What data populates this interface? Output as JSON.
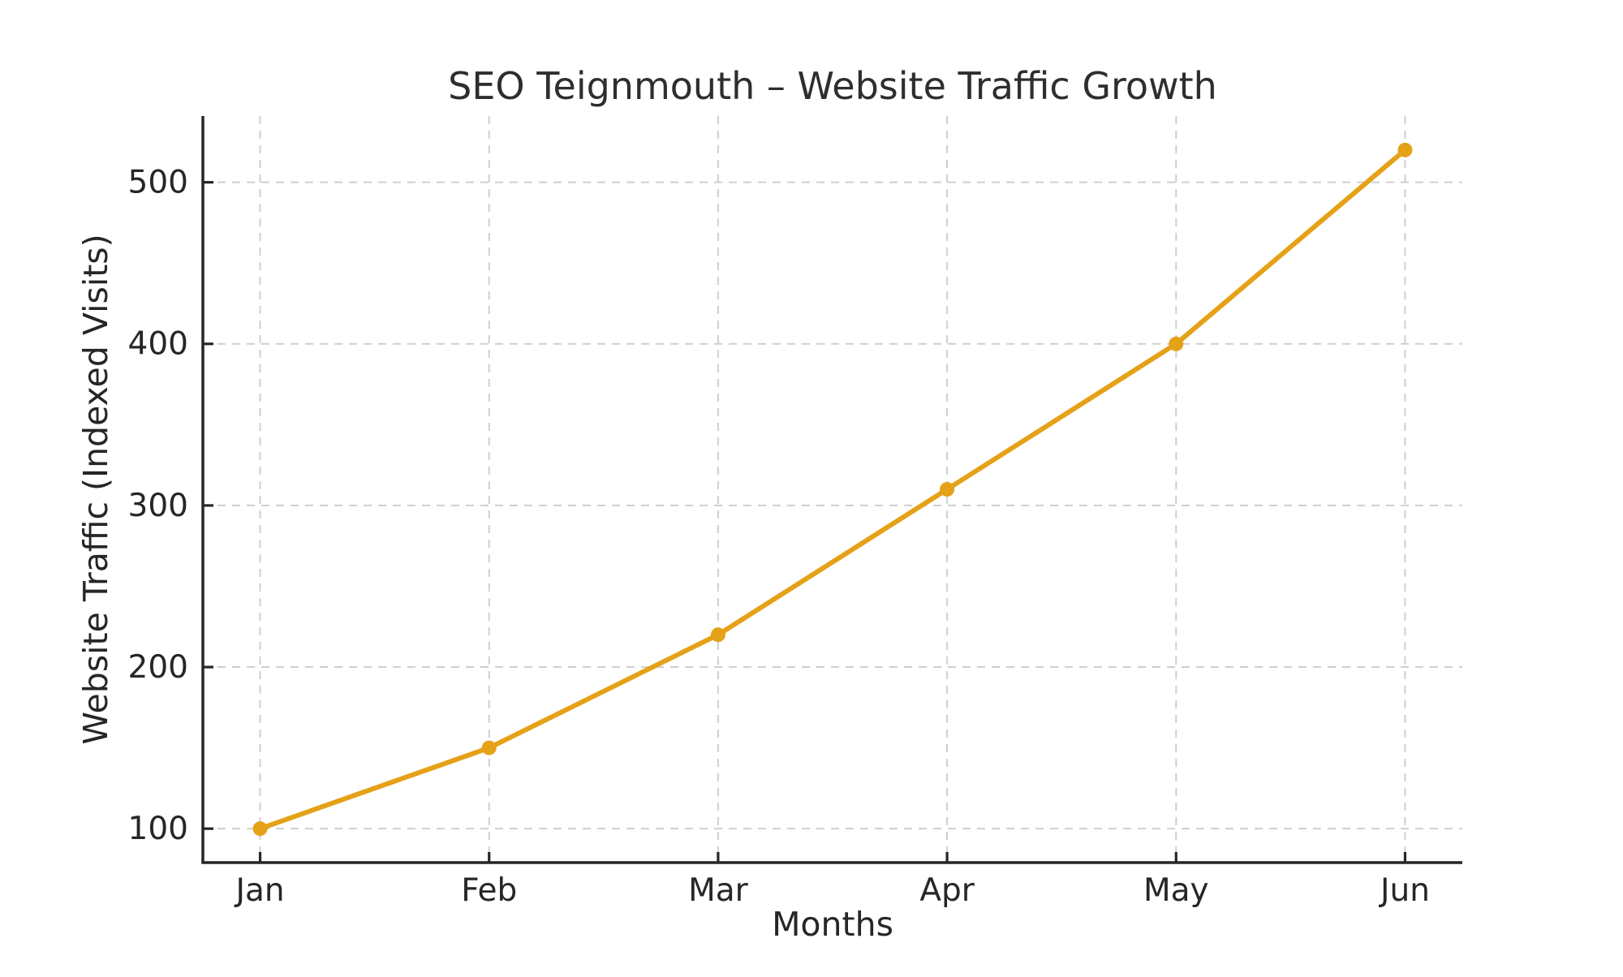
{
  "chart_data": {
    "type": "line",
    "title": "SEO Teignmouth – Website Traffic Growth",
    "xlabel": "Months",
    "ylabel": "Website Traffic (Indexed Visits)",
    "categories": [
      "Jan",
      "Feb",
      "Mar",
      "Apr",
      "May",
      "Jun"
    ],
    "series": [
      {
        "name": "Website Traffic (Indexed Visits)",
        "values": [
          100,
          150,
          220,
          310,
          400,
          520
        ]
      }
    ],
    "yticks": [
      100,
      200,
      300,
      400,
      500
    ],
    "ylim": [
      79,
      541
    ],
    "xlim_padding": 0.25,
    "grid": true,
    "grid_style": "dashed",
    "legend_position": "none",
    "marker": "circle",
    "colors": {
      "line": "#E5A117",
      "marker": "#E5A117",
      "grid": "#CFCFCF",
      "axis": "#262626",
      "text": "#262626",
      "background": "#FFFFFF"
    }
  }
}
